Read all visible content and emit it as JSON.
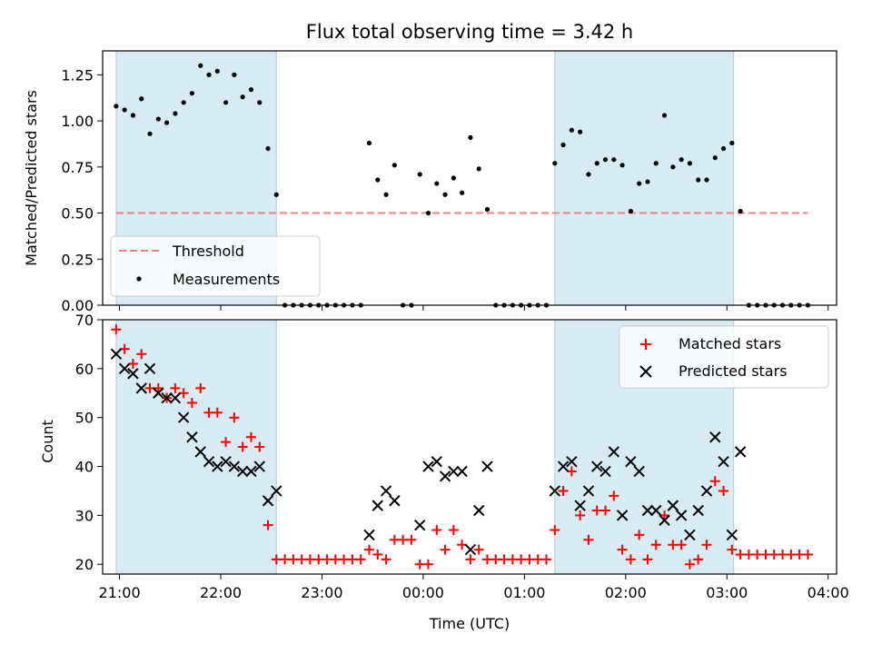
{
  "chart_data": [
    {
      "type": "scatter",
      "title": "Flux total observing time = 3.42 h",
      "xlabel": "",
      "ylabel": "Matched/Predicted stars",
      "xlim": [
        "20:50",
        "04:05"
      ],
      "ylim": [
        0,
        1.38
      ],
      "yticks": [
        "0.00",
        "0.25",
        "0.50",
        "0.75",
        "1.00",
        "1.25"
      ],
      "shaded_ranges": [
        [
          "20:58",
          "22:33"
        ],
        [
          "01:18",
          "03:04"
        ]
      ],
      "threshold": {
        "value": 0.5,
        "x": [
          "20:58",
          "03:48"
        ],
        "color": "#f08080"
      },
      "legend": {
        "position": "lower-left",
        "threshold_label": "Threshold",
        "measurements_label": "Measurements"
      },
      "series": [
        {
          "name": "Measurements",
          "color": "#000000",
          "points": [
            [
              "20:58",
              1.08
            ],
            [
              "21:03",
              1.06
            ],
            [
              "21:08",
              1.03
            ],
            [
              "21:13",
              1.12
            ],
            [
              "21:18",
              0.93
            ],
            [
              "21:23",
              1.01
            ],
            [
              "21:28",
              0.99
            ],
            [
              "21:33",
              1.04
            ],
            [
              "21:38",
              1.1
            ],
            [
              "21:43",
              1.15
            ],
            [
              "21:48",
              1.3
            ],
            [
              "21:53",
              1.25
            ],
            [
              "21:58",
              1.27
            ],
            [
              "22:03",
              1.1
            ],
            [
              "22:08",
              1.25
            ],
            [
              "22:13",
              1.13
            ],
            [
              "22:18",
              1.17
            ],
            [
              "22:23",
              1.1
            ],
            [
              "22:28",
              0.85
            ],
            [
              "22:33",
              0.6
            ],
            [
              "22:38",
              0
            ],
            [
              "22:43",
              0
            ],
            [
              "22:48",
              0
            ],
            [
              "22:53",
              0
            ],
            [
              "22:58",
              0
            ],
            [
              "23:03",
              0
            ],
            [
              "23:08",
              0
            ],
            [
              "23:13",
              0
            ],
            [
              "23:18",
              0
            ],
            [
              "23:23",
              0
            ],
            [
              "23:28",
              0.88
            ],
            [
              "23:33",
              0.68
            ],
            [
              "23:38",
              0.6
            ],
            [
              "23:43",
              0.76
            ],
            [
              "23:48",
              0
            ],
            [
              "23:53",
              0
            ],
            [
              "23:58",
              0.71
            ],
            [
              "00:03",
              0.5
            ],
            [
              "00:08",
              0.66
            ],
            [
              "00:13",
              0.6
            ],
            [
              "00:18",
              0.69
            ],
            [
              "00:23",
              0.61
            ],
            [
              "00:28",
              0.91
            ],
            [
              "00:33",
              0.74
            ],
            [
              "00:38",
              0.52
            ],
            [
              "00:43",
              0
            ],
            [
              "00:48",
              0
            ],
            [
              "00:53",
              0
            ],
            [
              "00:58",
              0
            ],
            [
              "01:03",
              0
            ],
            [
              "01:08",
              0
            ],
            [
              "01:13",
              0
            ],
            [
              "01:18",
              0.77
            ],
            [
              "01:23",
              0.87
            ],
            [
              "01:28",
              0.95
            ],
            [
              "01:33",
              0.94
            ],
            [
              "01:38",
              0.71
            ],
            [
              "01:43",
              0.77
            ],
            [
              "01:48",
              0.79
            ],
            [
              "01:53",
              0.79
            ],
            [
              "01:58",
              0.76
            ],
            [
              "02:03",
              0.51
            ],
            [
              "02:08",
              0.66
            ],
            [
              "02:13",
              0.67
            ],
            [
              "02:18",
              0.77
            ],
            [
              "02:23",
              1.03
            ],
            [
              "02:28",
              0.75
            ],
            [
              "02:33",
              0.79
            ],
            [
              "02:38",
              0.77
            ],
            [
              "02:43",
              0.68
            ],
            [
              "02:48",
              0.68
            ],
            [
              "02:53",
              0.8
            ],
            [
              "02:58",
              0.85
            ],
            [
              "03:03",
              0.88
            ],
            [
              "03:08",
              0.51
            ],
            [
              "03:13",
              0
            ],
            [
              "03:18",
              0
            ],
            [
              "03:23",
              0
            ],
            [
              "03:28",
              0
            ],
            [
              "03:33",
              0
            ],
            [
              "03:38",
              0
            ],
            [
              "03:43",
              0
            ],
            [
              "03:48",
              0
            ]
          ]
        }
      ]
    },
    {
      "type": "scatter",
      "title": "",
      "xlabel": "Time (UTC)",
      "ylabel": "Count",
      "xlim": [
        "20:50",
        "04:05"
      ],
      "ylim": [
        18,
        70
      ],
      "yticks": [
        "20",
        "30",
        "40",
        "50",
        "60",
        "70"
      ],
      "xticks": [
        "21:00",
        "22:00",
        "23:00",
        "00:00",
        "01:00",
        "02:00",
        "03:00",
        "04:00"
      ],
      "shaded_ranges": [
        [
          "20:58",
          "22:33"
        ],
        [
          "01:18",
          "03:04"
        ]
      ],
      "legend": {
        "position": "upper-right"
      },
      "series": [
        {
          "name": "Matched stars",
          "marker": "+",
          "color": "#ff0000",
          "points": [
            [
              "20:58",
              68
            ],
            [
              "21:03",
              64
            ],
            [
              "21:08",
              61
            ],
            [
              "21:13",
              63
            ],
            [
              "21:18",
              56
            ],
            [
              "21:23",
              56
            ],
            [
              "21:28",
              54
            ],
            [
              "21:33",
              56
            ],
            [
              "21:38",
              55
            ],
            [
              "21:43",
              53
            ],
            [
              "21:48",
              56
            ],
            [
              "21:53",
              51
            ],
            [
              "21:58",
              51
            ],
            [
              "22:03",
              45
            ],
            [
              "22:08",
              50
            ],
            [
              "22:13",
              44
            ],
            [
              "22:18",
              46
            ],
            [
              "22:23",
              44
            ],
            [
              "22:28",
              28
            ],
            [
              "22:33",
              21
            ],
            [
              "22:38",
              21
            ],
            [
              "22:43",
              21
            ],
            [
              "22:48",
              21
            ],
            [
              "22:53",
              21
            ],
            [
              "22:58",
              21
            ],
            [
              "23:03",
              21
            ],
            [
              "23:08",
              21
            ],
            [
              "23:13",
              21
            ],
            [
              "23:18",
              21
            ],
            [
              "23:23",
              21
            ],
            [
              "23:28",
              23
            ],
            [
              "23:33",
              22
            ],
            [
              "23:38",
              21
            ],
            [
              "23:43",
              25
            ],
            [
              "23:48",
              25
            ],
            [
              "23:53",
              25
            ],
            [
              "23:58",
              20
            ],
            [
              "00:03",
              20
            ],
            [
              "00:08",
              27
            ],
            [
              "00:13",
              23
            ],
            [
              "00:18",
              27
            ],
            [
              "00:23",
              24
            ],
            [
              "00:28",
              21
            ],
            [
              "00:33",
              23
            ],
            [
              "00:38",
              21
            ],
            [
              "00:43",
              21
            ],
            [
              "00:48",
              21
            ],
            [
              "00:53",
              21
            ],
            [
              "00:58",
              21
            ],
            [
              "01:03",
              21
            ],
            [
              "01:08",
              21
            ],
            [
              "01:13",
              21
            ],
            [
              "01:18",
              27
            ],
            [
              "01:23",
              35
            ],
            [
              "01:28",
              39
            ],
            [
              "01:33",
              30
            ],
            [
              "01:38",
              25
            ],
            [
              "01:43",
              31
            ],
            [
              "01:48",
              31
            ],
            [
              "01:53",
              34
            ],
            [
              "01:58",
              23
            ],
            [
              "02:03",
              21
            ],
            [
              "02:08",
              26
            ],
            [
              "02:13",
              21
            ],
            [
              "02:18",
              24
            ],
            [
              "02:23",
              30
            ],
            [
              "02:28",
              24
            ],
            [
              "02:33",
              24
            ],
            [
              "02:38",
              20
            ],
            [
              "02:43",
              21
            ],
            [
              "02:48",
              24
            ],
            [
              "02:53",
              37
            ],
            [
              "02:58",
              35
            ],
            [
              "03:03",
              23
            ],
            [
              "03:08",
              22
            ],
            [
              "03:13",
              22
            ],
            [
              "03:18",
              22
            ],
            [
              "03:23",
              22
            ],
            [
              "03:28",
              22
            ],
            [
              "03:33",
              22
            ],
            [
              "03:38",
              22
            ],
            [
              "03:43",
              22
            ],
            [
              "03:48",
              22
            ]
          ]
        },
        {
          "name": "Predicted stars",
          "marker": "x",
          "color": "#000000",
          "points": [
            [
              "20:58",
              63
            ],
            [
              "21:03",
              60
            ],
            [
              "21:08",
              59
            ],
            [
              "21:13",
              56
            ],
            [
              "21:18",
              60
            ],
            [
              "21:23",
              55
            ],
            [
              "21:28",
              54
            ],
            [
              "21:33",
              54
            ],
            [
              "21:38",
              50
            ],
            [
              "21:43",
              46
            ],
            [
              "21:48",
              43
            ],
            [
              "21:53",
              41
            ],
            [
              "21:58",
              40
            ],
            [
              "22:03",
              41
            ],
            [
              "22:08",
              40
            ],
            [
              "22:13",
              39
            ],
            [
              "22:18",
              39
            ],
            [
              "22:23",
              40
            ],
            [
              "22:28",
              33
            ],
            [
              "22:33",
              35
            ],
            [
              "23:28",
              26
            ],
            [
              "23:33",
              32
            ],
            [
              "23:38",
              35
            ],
            [
              "23:43",
              33
            ],
            [
              "23:58",
              28
            ],
            [
              "00:03",
              40
            ],
            [
              "00:08",
              41
            ],
            [
              "00:13",
              38
            ],
            [
              "00:18",
              39
            ],
            [
              "00:23",
              39
            ],
            [
              "00:28",
              23
            ],
            [
              "00:33",
              31
            ],
            [
              "00:38",
              40
            ],
            [
              "01:18",
              35
            ],
            [
              "01:23",
              40
            ],
            [
              "01:28",
              41
            ],
            [
              "01:33",
              32
            ],
            [
              "01:38",
              35
            ],
            [
              "01:43",
              40
            ],
            [
              "01:48",
              39
            ],
            [
              "01:53",
              43
            ],
            [
              "01:58",
              30
            ],
            [
              "02:03",
              41
            ],
            [
              "02:08",
              39
            ],
            [
              "02:13",
              31
            ],
            [
              "02:18",
              31
            ],
            [
              "02:23",
              29
            ],
            [
              "02:28",
              32
            ],
            [
              "02:33",
              30
            ],
            [
              "02:38",
              26
            ],
            [
              "02:43",
              31
            ],
            [
              "02:48",
              35
            ],
            [
              "02:53",
              46
            ],
            [
              "02:58",
              41
            ],
            [
              "03:03",
              26
            ],
            [
              "03:08",
              43
            ]
          ]
        }
      ]
    }
  ]
}
